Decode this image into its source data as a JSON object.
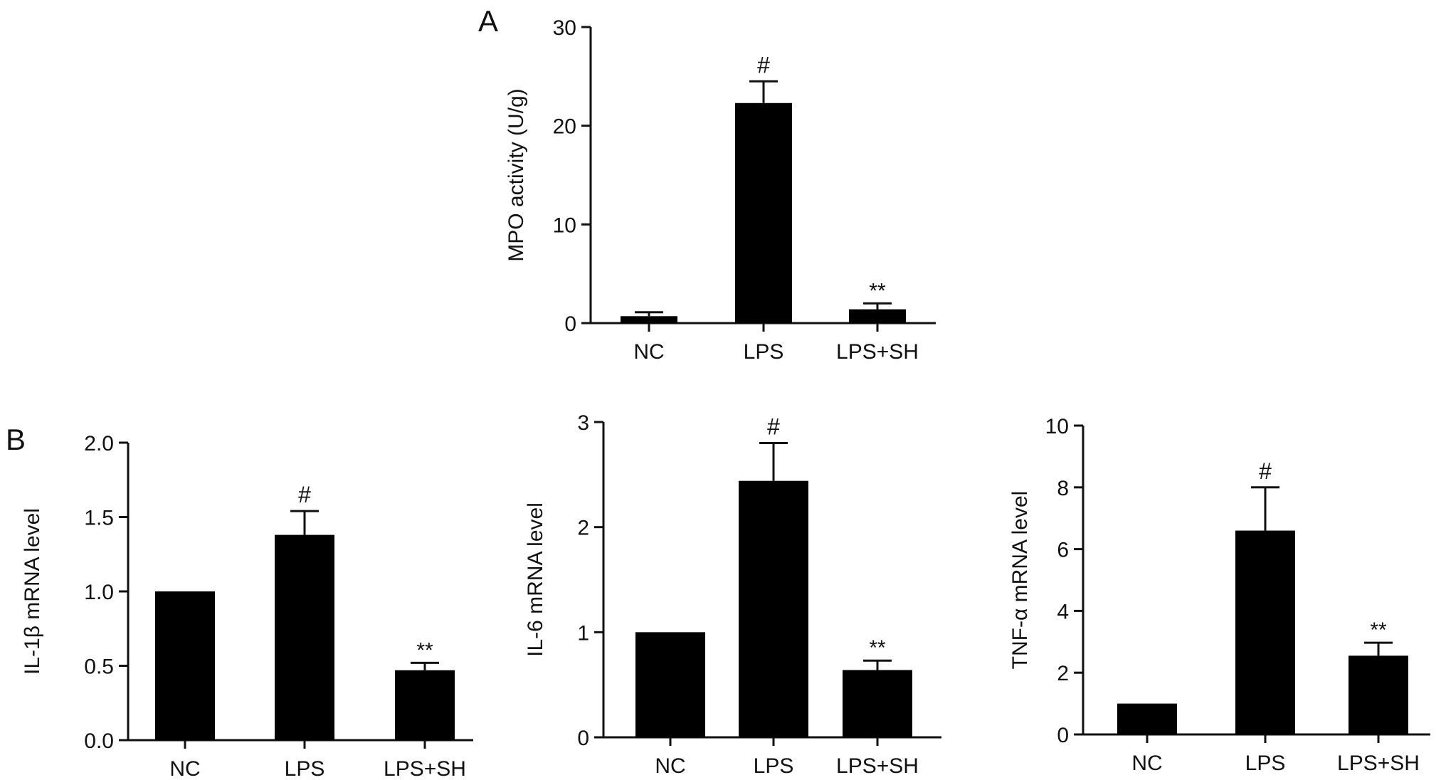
{
  "panels": {
    "a_label": "A",
    "b_label": "B"
  },
  "chart_data": [
    {
      "id": "mpo",
      "type": "bar",
      "categories": [
        "NC",
        "LPS",
        "LPS+SH"
      ],
      "values": [
        0.7,
        22.3,
        1.4
      ],
      "errors": [
        0.4,
        2.2,
        0.6
      ],
      "annotations": [
        "",
        "#",
        "**"
      ],
      "ylabel": "MPO activity (U/g)",
      "ylim": [
        0,
        30
      ],
      "yticks": [
        0,
        10,
        20,
        30
      ],
      "ytick_labels": [
        "0",
        "10",
        "20",
        "30"
      ],
      "bar_color": "#000000"
    },
    {
      "id": "il1b",
      "type": "bar",
      "categories": [
        "NC",
        "LPS",
        "LPS+SH"
      ],
      "values": [
        1.0,
        1.38,
        0.47
      ],
      "errors": [
        0,
        0.16,
        0.05
      ],
      "annotations": [
        "",
        "#",
        "**"
      ],
      "ylabel": "IL-1β mRNA level",
      "ylim": [
        0,
        2.0
      ],
      "yticks": [
        0,
        0.5,
        1.0,
        1.5,
        2.0
      ],
      "ytick_labels": [
        "0.0",
        "0.5",
        "1.0",
        "1.5",
        "2.0"
      ],
      "bar_color": "#000000"
    },
    {
      "id": "il6",
      "type": "bar",
      "categories": [
        "NC",
        "LPS",
        "LPS+SH"
      ],
      "values": [
        1.0,
        2.44,
        0.64
      ],
      "errors": [
        0,
        0.36,
        0.09
      ],
      "annotations": [
        "",
        "#",
        "**"
      ],
      "ylabel": "IL-6 mRNA level",
      "ylim": [
        0,
        3
      ],
      "yticks": [
        0,
        1,
        2,
        3
      ],
      "ytick_labels": [
        "0",
        "1",
        "2",
        "3"
      ],
      "bar_color": "#000000"
    },
    {
      "id": "tnfa",
      "type": "bar",
      "categories": [
        "NC",
        "LPS",
        "LPS+SH"
      ],
      "values": [
        1.0,
        6.6,
        2.55
      ],
      "errors": [
        0,
        1.4,
        0.42
      ],
      "annotations": [
        "",
        "#",
        "**"
      ],
      "ylabel": "TNF-α mRNA level",
      "ylim": [
        0,
        10
      ],
      "yticks": [
        0,
        2,
        4,
        6,
        8,
        10
      ],
      "ytick_labels": [
        "0",
        "2",
        "4",
        "6",
        "8",
        "10"
      ],
      "bar_color": "#000000"
    }
  ]
}
